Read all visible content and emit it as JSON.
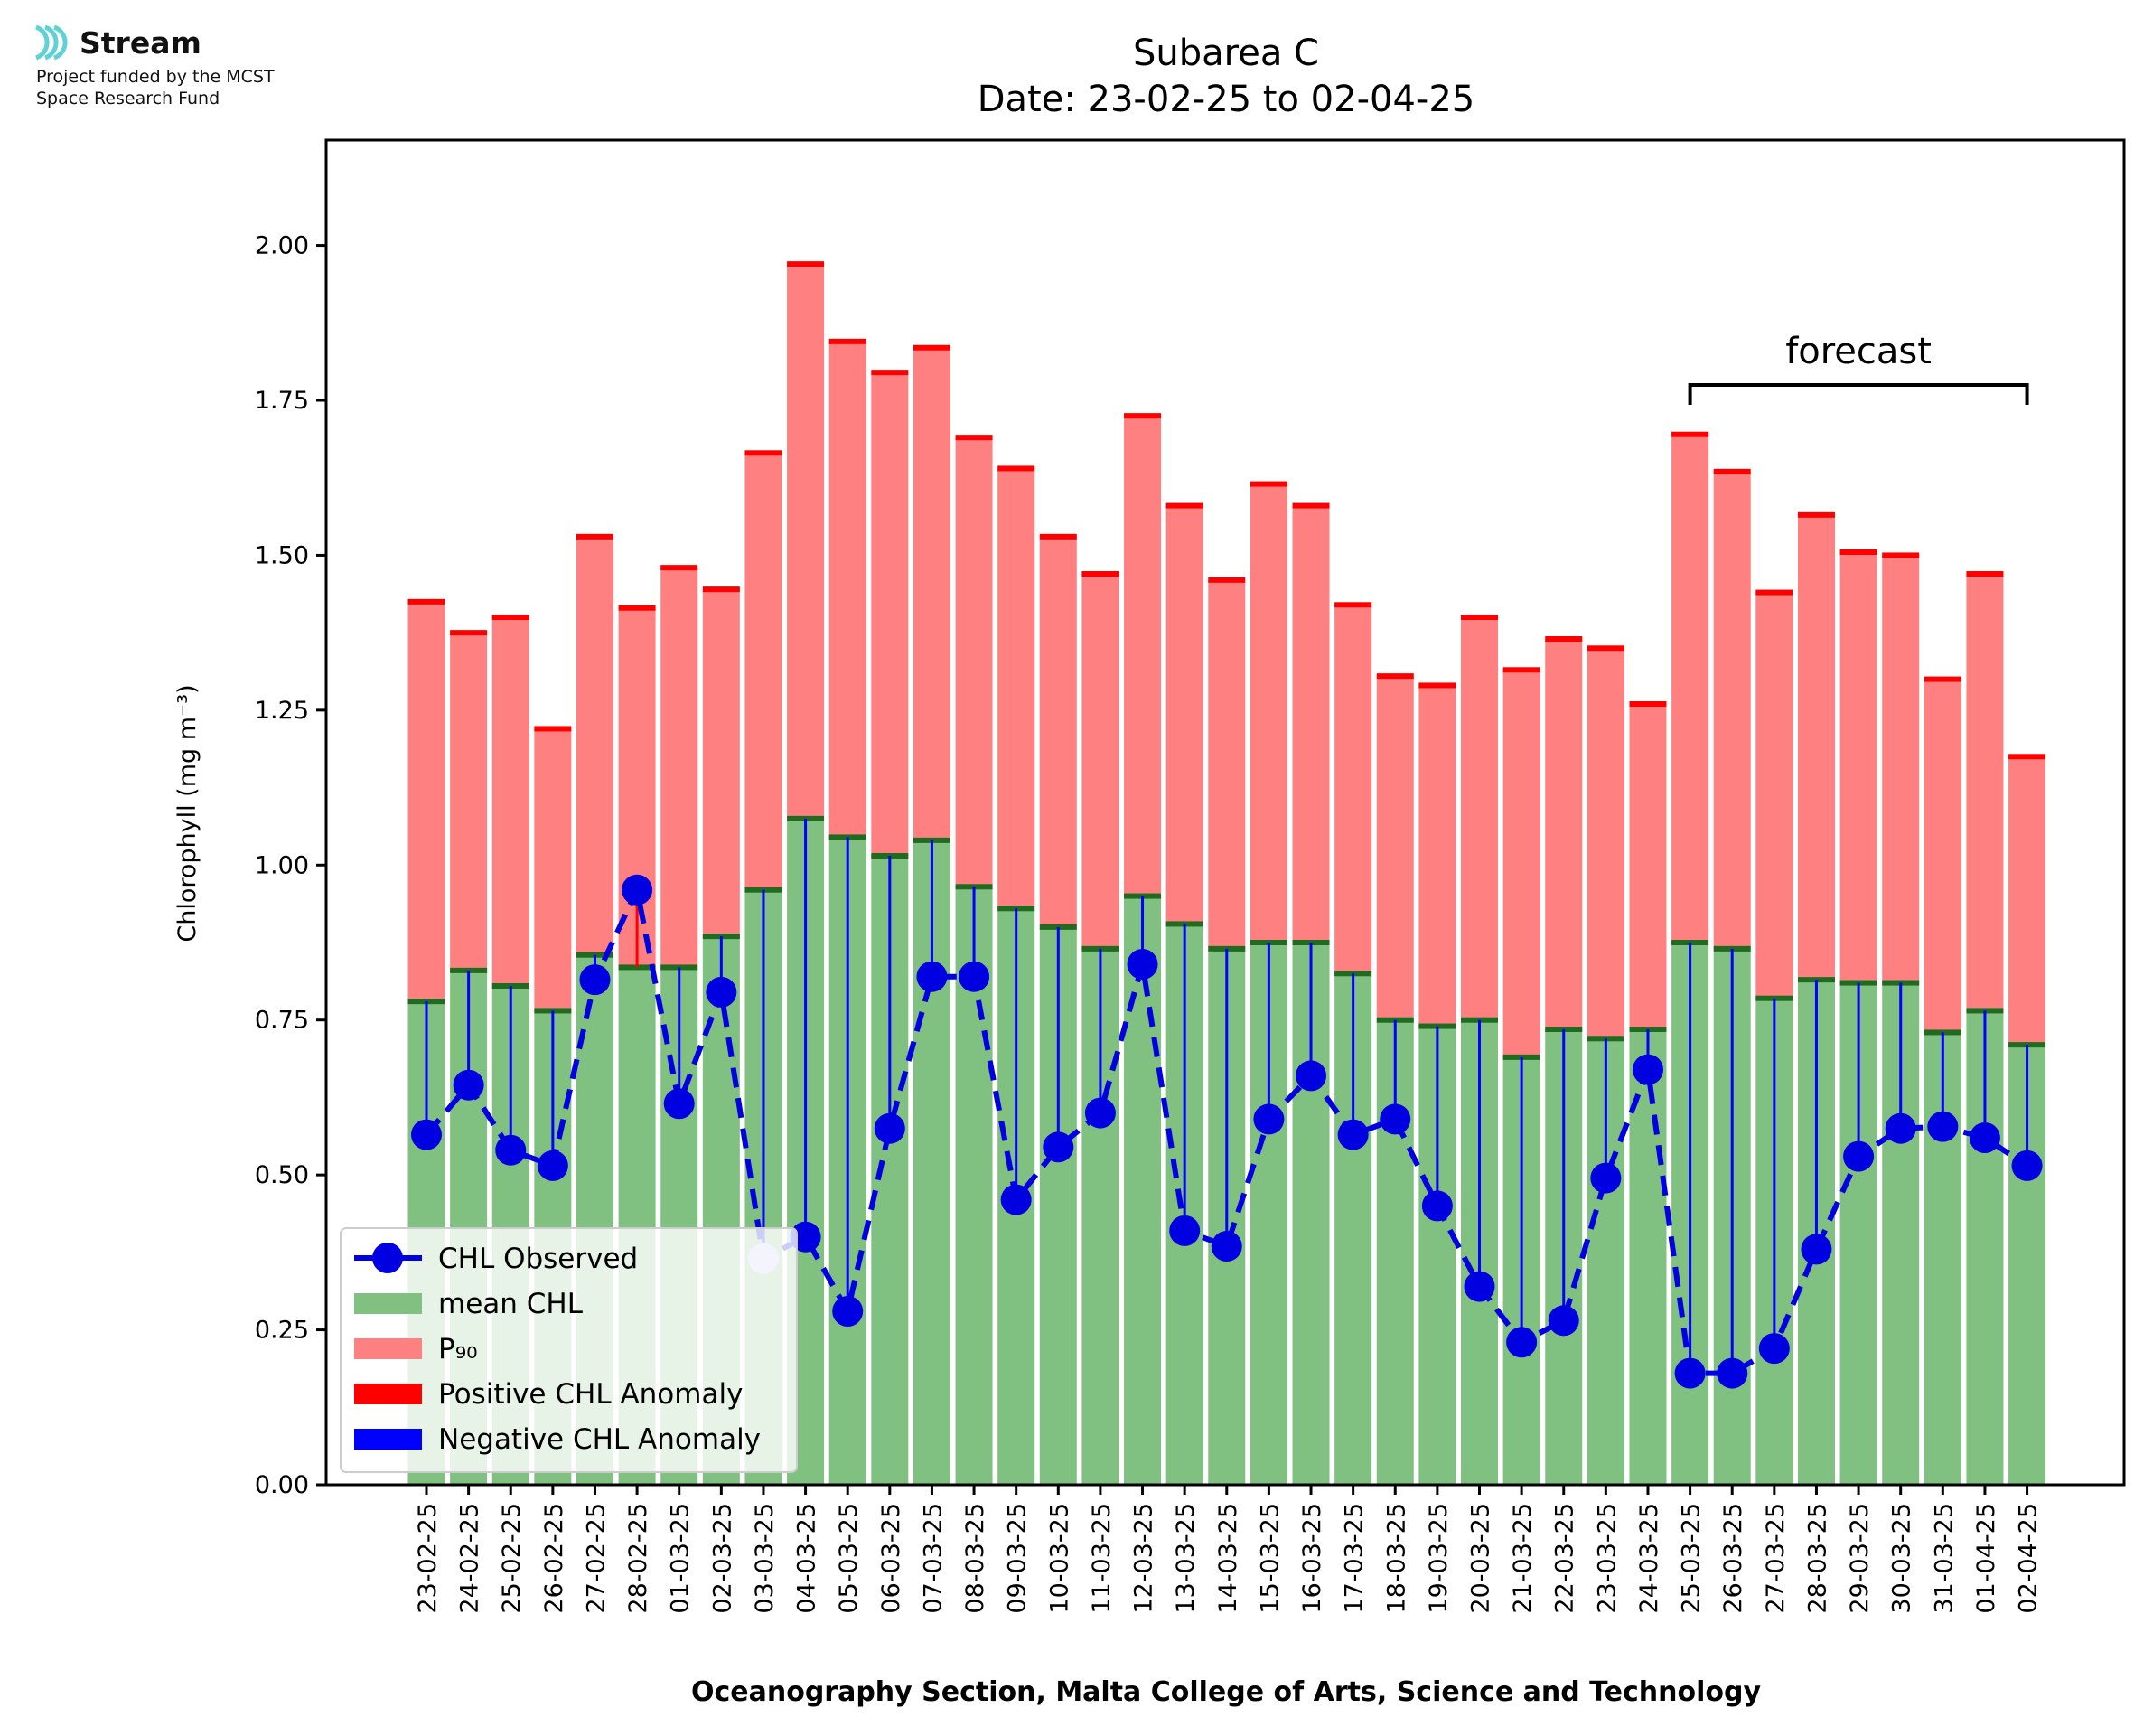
{
  "logo": {
    "brand": "Stream",
    "line1": "Project funded by the MCST",
    "line2": "Space Research Fund",
    "icon": "stream-waves-icon",
    "color": "#5fd3d3"
  },
  "chart_data": {
    "type": "bar",
    "title": "Subarea C",
    "subtitle": "Date: 23-02-25 to 02-04-25",
    "xlabel": "Oceanography Section, Malta College of Arts, Science and Technology",
    "ylabel": "Chlorophyll (mg m⁻³)",
    "ylim": [
      0,
      2.17
    ],
    "yticks": [
      "0.00",
      "0.25",
      "0.50",
      "0.75",
      "1.00",
      "1.25",
      "1.50",
      "1.75",
      "2.00"
    ],
    "grid": false,
    "legend_position": "lower-left",
    "categories": [
      "23-02-25",
      "24-02-25",
      "25-02-25",
      "26-02-25",
      "27-02-25",
      "28-02-25",
      "01-03-25",
      "02-03-25",
      "03-03-25",
      "04-03-25",
      "05-03-25",
      "06-03-25",
      "07-03-25",
      "08-03-25",
      "09-03-25",
      "10-03-25",
      "11-03-25",
      "12-03-25",
      "13-03-25",
      "14-03-25",
      "15-03-25",
      "16-03-25",
      "17-03-25",
      "18-03-25",
      "19-03-25",
      "20-03-25",
      "21-03-25",
      "22-03-25",
      "23-03-25",
      "24-03-25",
      "25-03-25",
      "26-03-25",
      "27-03-25",
      "28-03-25",
      "29-03-25",
      "30-03-25",
      "31-03-25",
      "01-04-25",
      "02-04-25"
    ],
    "series": [
      {
        "name": "CHL Observed",
        "color": "#0000e0",
        "values": [
          0.565,
          0.645,
          0.54,
          0.515,
          0.815,
          0.96,
          0.615,
          0.795,
          0.365,
          0.4,
          0.28,
          0.575,
          0.82,
          0.82,
          0.46,
          0.545,
          0.6,
          0.84,
          0.41,
          0.385,
          0.59,
          0.66,
          0.565,
          0.59,
          0.45,
          0.32,
          0.23,
          0.265,
          0.495,
          0.67,
          0.18,
          0.18,
          0.22,
          0.38,
          0.53,
          0.575,
          0.578,
          0.56,
          0.515
        ]
      },
      {
        "name": "mean CHL",
        "color": "#80c080",
        "values": [
          0.78,
          0.83,
          0.805,
          0.765,
          0.855,
          0.835,
          0.835,
          0.885,
          0.96,
          1.075,
          1.045,
          1.015,
          1.04,
          0.965,
          0.93,
          0.9,
          0.865,
          0.95,
          0.905,
          0.865,
          0.875,
          0.875,
          0.825,
          0.75,
          0.74,
          0.75,
          0.69,
          0.735,
          0.72,
          0.735,
          0.875,
          0.865,
          0.785,
          0.815,
          0.81,
          0.81,
          0.73,
          0.765,
          0.71
        ]
      },
      {
        "name": "P₉₀",
        "color": "#ff8080",
        "values": [
          1.425,
          1.375,
          1.4,
          1.22,
          1.53,
          1.415,
          1.48,
          1.445,
          1.665,
          1.97,
          1.845,
          1.795,
          1.835,
          1.69,
          1.64,
          1.53,
          1.47,
          1.725,
          1.58,
          1.46,
          1.615,
          1.58,
          1.42,
          1.305,
          1.29,
          1.4,
          1.315,
          1.365,
          1.35,
          1.26,
          1.695,
          1.635,
          1.44,
          1.565,
          1.505,
          1.5,
          1.3,
          1.47,
          1.175
        ]
      }
    ],
    "legend": [
      {
        "label": "CHL Observed",
        "kind": "line-marker",
        "color": "#0000e0"
      },
      {
        "label": "mean CHL",
        "kind": "patch",
        "color": "#80c080"
      },
      {
        "label": "P₉₀",
        "kind": "patch",
        "color": "#ff8080"
      },
      {
        "label": "Positive CHL Anomaly",
        "kind": "patch",
        "color": "#ff0000"
      },
      {
        "label": "Negative CHL Anomaly",
        "kind": "patch",
        "color": "#0000ff"
      }
    ],
    "annotations": [
      {
        "text": "forecast",
        "from": "25-03-25",
        "to": "02-04-25"
      }
    ],
    "colors": {
      "mean_cap": "#1f6b1f",
      "p90_cap": "#ff0000",
      "positive_anomaly": "#ff0000",
      "negative_anomaly": "#0000ff",
      "outlier_marker": "#c8c8ff"
    }
  }
}
